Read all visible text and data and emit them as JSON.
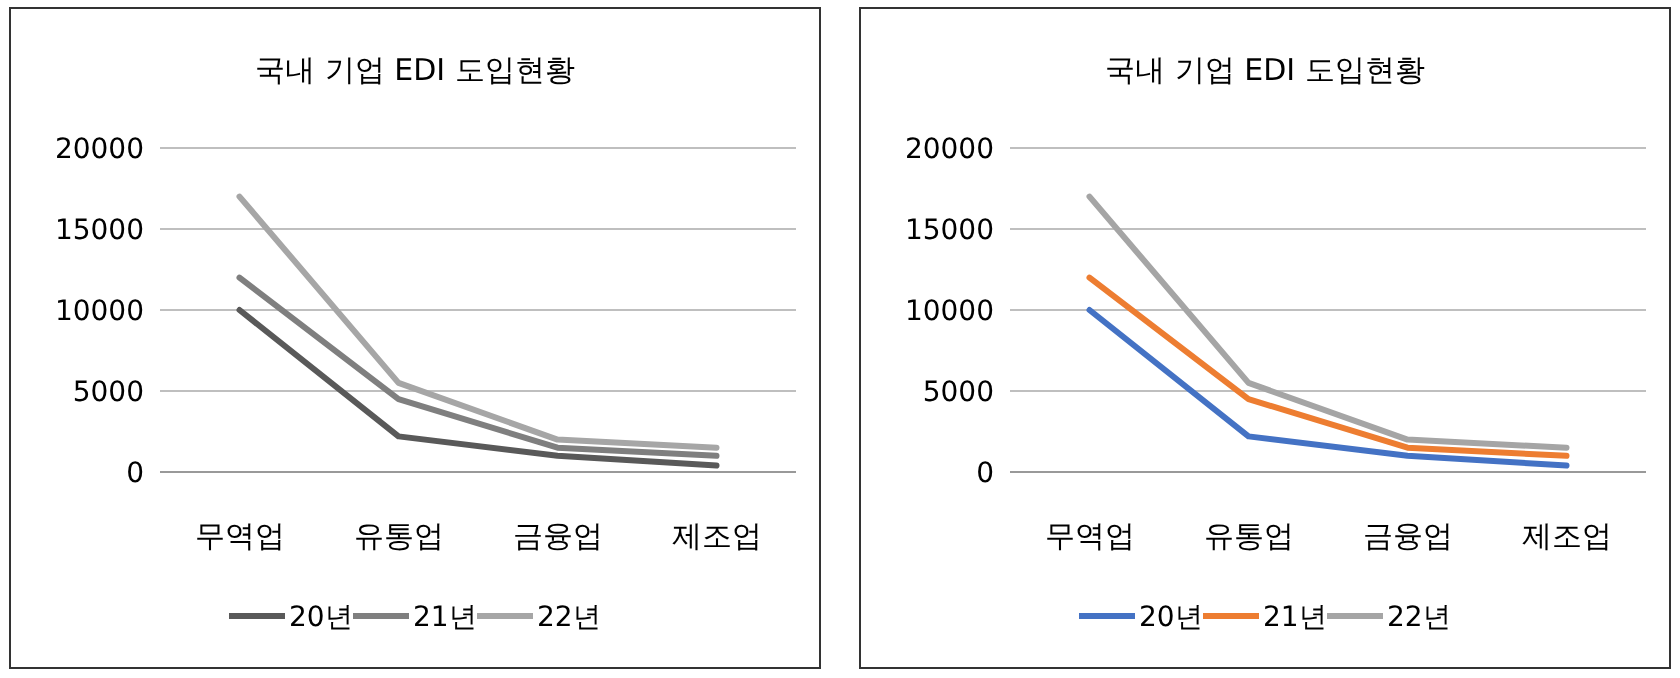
{
  "chart_data": [
    {
      "type": "line",
      "title": "국내 기업 EDI 도입현황",
      "categories": [
        "무역업",
        "유통업",
        "금융업",
        "제조업"
      ],
      "ylim": [
        0,
        20000
      ],
      "yticks": [
        0,
        5000,
        10000,
        15000,
        20000
      ],
      "grid": "y",
      "legend": "bottom",
      "series": [
        {
          "name": "20년",
          "color": "#595959",
          "values": [
            10000,
            2200,
            1000,
            400
          ]
        },
        {
          "name": "21년",
          "color": "#7f7f7f",
          "values": [
            12000,
            4500,
            1500,
            1000
          ]
        },
        {
          "name": "22년",
          "color": "#a6a6a6",
          "values": [
            17000,
            5500,
            2000,
            1500
          ]
        }
      ]
    },
    {
      "type": "line",
      "title": "국내 기업 EDI 도입현황",
      "categories": [
        "무역업",
        "유통업",
        "금융업",
        "제조업"
      ],
      "ylim": [
        0,
        20000
      ],
      "yticks": [
        0,
        5000,
        10000,
        15000,
        20000
      ],
      "grid": "y",
      "legend": "bottom",
      "series": [
        {
          "name": "20년",
          "color": "#4472c4",
          "values": [
            10000,
            2200,
            1000,
            400
          ]
        },
        {
          "name": "21년",
          "color": "#ed7d31",
          "values": [
            12000,
            4500,
            1500,
            1000
          ]
        },
        {
          "name": "22년",
          "color": "#a5a5a5",
          "values": [
            17000,
            5500,
            2000,
            1500
          ]
        }
      ]
    }
  ]
}
